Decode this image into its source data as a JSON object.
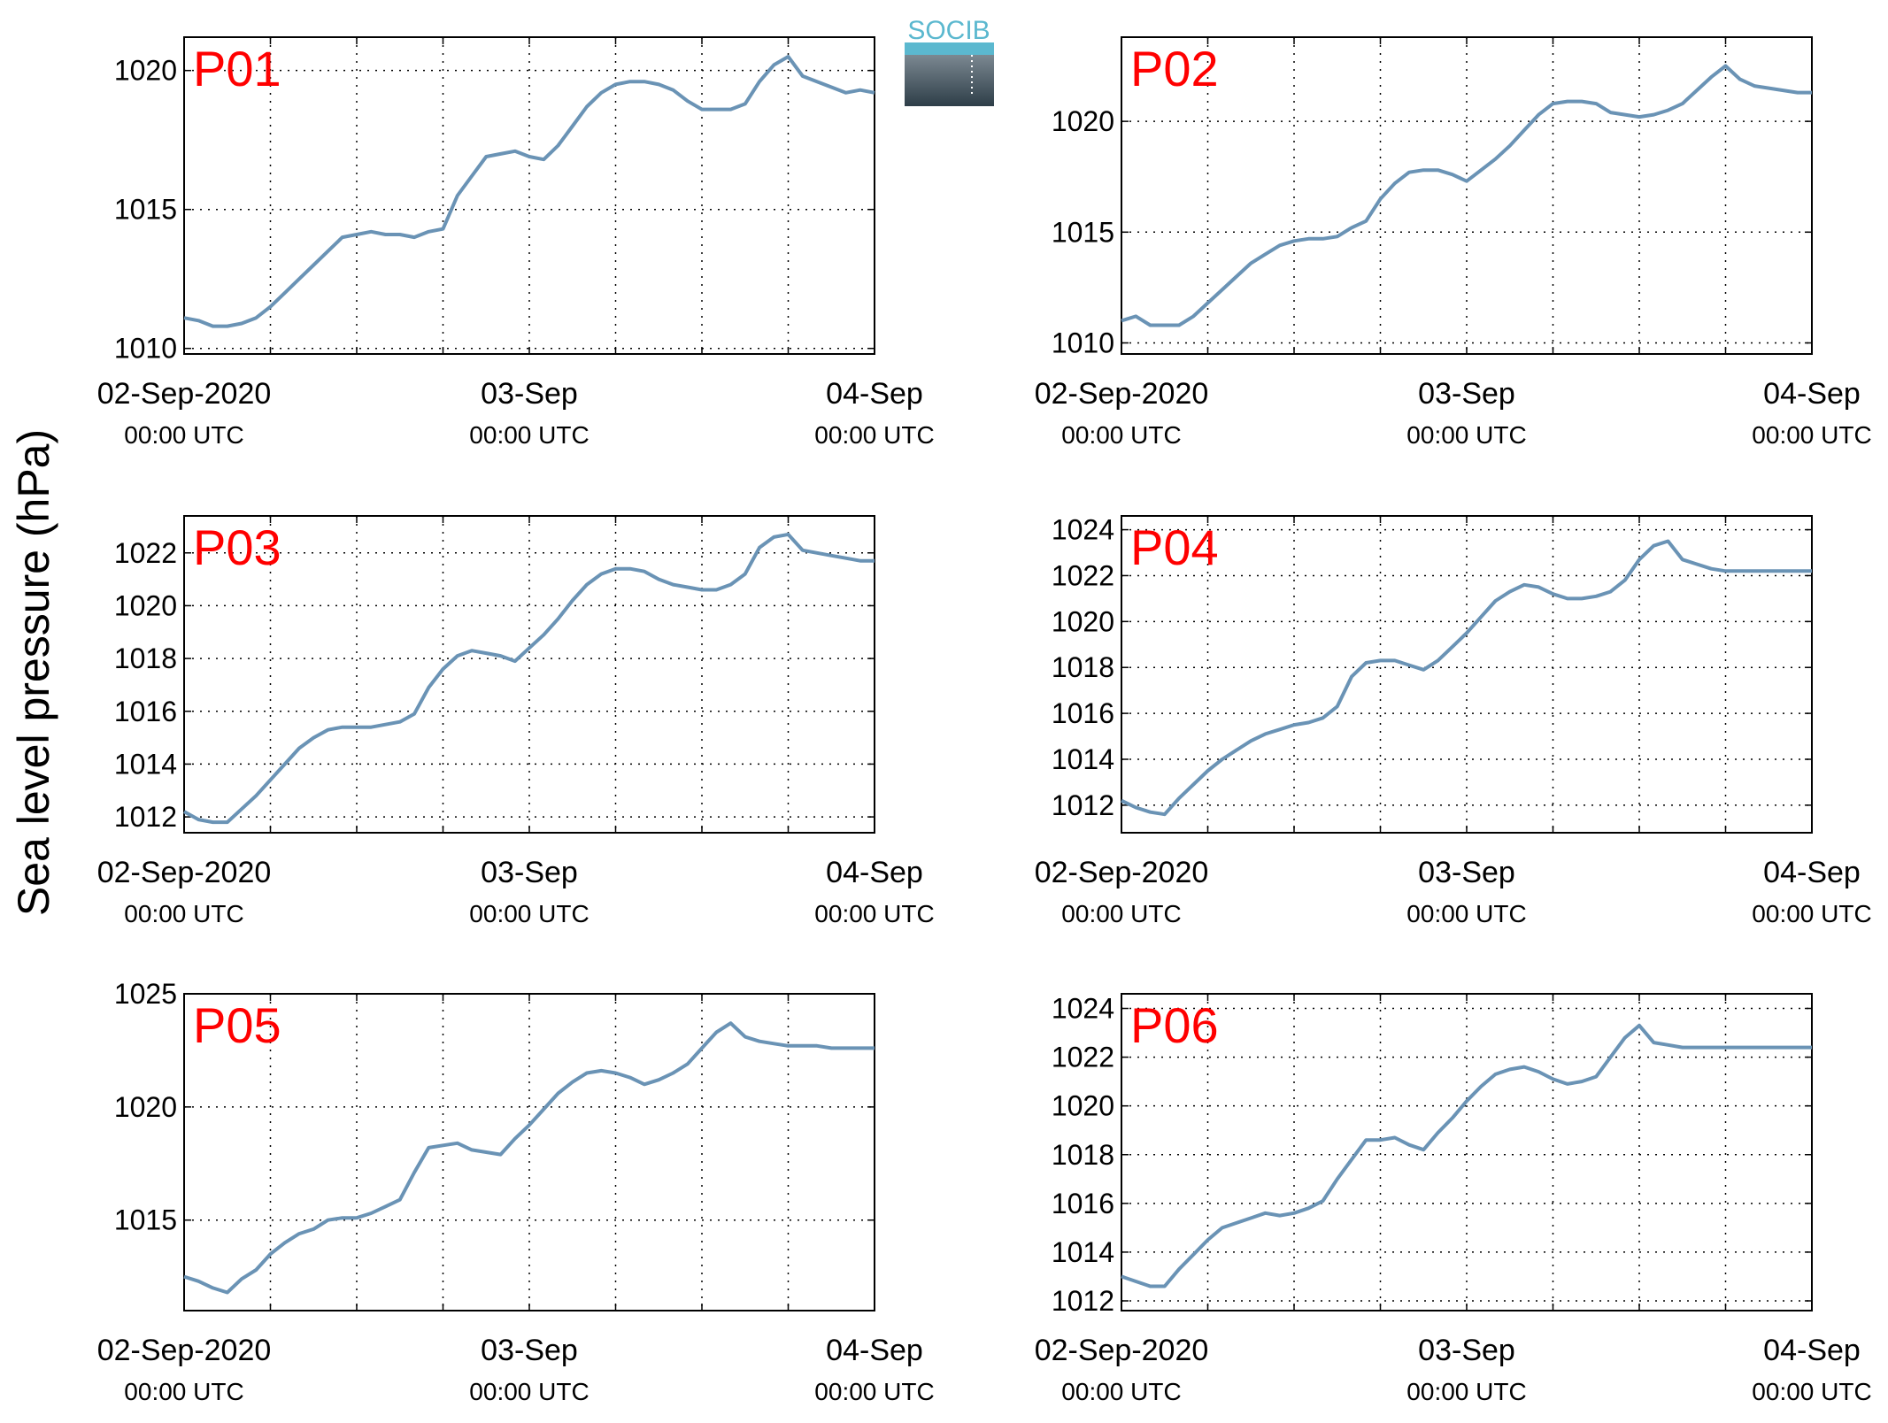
{
  "ylabel": "Sea level pressure (hPa)",
  "logo": {
    "text": "SOCIB",
    "color_top": "#5bb8cf",
    "color_bottom": "#2e3e48"
  },
  "x_ticks": [
    {
      "date": "02-Sep-2020",
      "time": "00:00 UTC"
    },
    {
      "date": "03-Sep",
      "time": "00:00 UTC"
    },
    {
      "date": "04-Sep",
      "time": "00:00 UTC"
    }
  ],
  "colors": {
    "series": "#6a93b5",
    "panel_label": "#ff0000",
    "grid": "#000000"
  },
  "chart_data": [
    {
      "type": "line",
      "panel": "P01",
      "xlim": [
        "2020-09-02 00:00",
        "2020-09-04 00:00"
      ],
      "ylim": [
        1009.8,
        1021.2
      ],
      "yticks": [
        1010,
        1015,
        1020
      ],
      "x_unit": "hours from 02-Sep-2020 00:00 UTC",
      "x": [
        0,
        1,
        2,
        3,
        4,
        5,
        6,
        7,
        8,
        9,
        10,
        11,
        12,
        13,
        14,
        15,
        16,
        17,
        18,
        19,
        20,
        21,
        22,
        23,
        24,
        25,
        26,
        27,
        28,
        29,
        30,
        31,
        32,
        33,
        34,
        35,
        36,
        37,
        38,
        39,
        40,
        41,
        42,
        43,
        44,
        45,
        46,
        47,
        48
      ],
      "values": [
        1011.1,
        1011.0,
        1010.8,
        1010.8,
        1010.9,
        1011.1,
        1011.5,
        1012.0,
        1012.5,
        1013.0,
        1013.5,
        1014.0,
        1014.1,
        1014.2,
        1014.1,
        1014.1,
        1014.0,
        1014.2,
        1014.3,
        1015.5,
        1016.2,
        1016.9,
        1017.0,
        1017.1,
        1016.9,
        1016.8,
        1017.3,
        1018.0,
        1018.7,
        1019.2,
        1019.5,
        1019.6,
        1019.6,
        1019.5,
        1019.3,
        1018.9,
        1018.6,
        1018.6,
        1018.6,
        1018.8,
        1019.6,
        1020.2,
        1020.5,
        1019.8,
        1019.6,
        1019.4,
        1019.2,
        1019.3,
        1019.2
      ]
    },
    {
      "type": "line",
      "panel": "P02",
      "xlim": [
        "2020-09-02 00:00",
        "2020-09-04 00:00"
      ],
      "ylim": [
        1009.5,
        1023.8
      ],
      "yticks": [
        1010,
        1015,
        1020
      ],
      "x_unit": "hours from 02-Sep-2020 00:00 UTC",
      "x": [
        0,
        1,
        2,
        3,
        4,
        5,
        6,
        7,
        8,
        9,
        10,
        11,
        12,
        13,
        14,
        15,
        16,
        17,
        18,
        19,
        20,
        21,
        22,
        23,
        24,
        25,
        26,
        27,
        28,
        29,
        30,
        31,
        32,
        33,
        34,
        35,
        36,
        37,
        38,
        39,
        40,
        41,
        42,
        43,
        44,
        45,
        46,
        47,
        48
      ],
      "values": [
        1011.0,
        1011.2,
        1010.8,
        1010.8,
        1010.8,
        1011.2,
        1011.8,
        1012.4,
        1013.0,
        1013.6,
        1014.0,
        1014.4,
        1014.6,
        1014.7,
        1014.7,
        1014.8,
        1015.2,
        1015.5,
        1016.5,
        1017.2,
        1017.7,
        1017.8,
        1017.8,
        1017.6,
        1017.3,
        1017.8,
        1018.3,
        1018.9,
        1019.6,
        1020.3,
        1020.8,
        1020.9,
        1020.9,
        1020.8,
        1020.4,
        1020.3,
        1020.2,
        1020.3,
        1020.5,
        1020.8,
        1021.4,
        1022.0,
        1022.5,
        1021.9,
        1021.6,
        1021.5,
        1021.4,
        1021.3,
        1021.3
      ]
    },
    {
      "type": "line",
      "panel": "P03",
      "xlim": [
        "2020-09-02 00:00",
        "2020-09-04 00:00"
      ],
      "ylim": [
        1011.4,
        1023.4
      ],
      "yticks": [
        1012,
        1014,
        1016,
        1018,
        1020,
        1022
      ],
      "x_unit": "hours from 02-Sep-2020 00:00 UTC",
      "x": [
        0,
        1,
        2,
        3,
        4,
        5,
        6,
        7,
        8,
        9,
        10,
        11,
        12,
        13,
        14,
        15,
        16,
        17,
        18,
        19,
        20,
        21,
        22,
        23,
        24,
        25,
        26,
        27,
        28,
        29,
        30,
        31,
        32,
        33,
        34,
        35,
        36,
        37,
        38,
        39,
        40,
        41,
        42,
        43,
        44,
        45,
        46,
        47,
        48
      ],
      "values": [
        1012.2,
        1011.9,
        1011.8,
        1011.8,
        1012.3,
        1012.8,
        1013.4,
        1014.0,
        1014.6,
        1015.0,
        1015.3,
        1015.4,
        1015.4,
        1015.4,
        1015.5,
        1015.6,
        1015.9,
        1016.9,
        1017.6,
        1018.1,
        1018.3,
        1018.2,
        1018.1,
        1017.9,
        1018.4,
        1018.9,
        1019.5,
        1020.2,
        1020.8,
        1021.2,
        1021.4,
        1021.4,
        1021.3,
        1021.0,
        1020.8,
        1020.7,
        1020.6,
        1020.6,
        1020.8,
        1021.2,
        1022.2,
        1022.6,
        1022.7,
        1022.1,
        1022.0,
        1021.9,
        1021.8,
        1021.7,
        1021.7
      ]
    },
    {
      "type": "line",
      "panel": "P04",
      "xlim": [
        "2020-09-02 00:00",
        "2020-09-04 00:00"
      ],
      "ylim": [
        1010.8,
        1024.6
      ],
      "yticks": [
        1012,
        1014,
        1016,
        1018,
        1020,
        1022,
        1024
      ],
      "x_unit": "hours from 02-Sep-2020 00:00 UTC",
      "x": [
        0,
        1,
        2,
        3,
        4,
        5,
        6,
        7,
        8,
        9,
        10,
        11,
        12,
        13,
        14,
        15,
        16,
        17,
        18,
        19,
        20,
        21,
        22,
        23,
        24,
        25,
        26,
        27,
        28,
        29,
        30,
        31,
        32,
        33,
        34,
        35,
        36,
        37,
        38,
        39,
        40,
        41,
        42,
        43,
        44,
        45,
        46,
        47,
        48
      ],
      "values": [
        1012.2,
        1011.9,
        1011.7,
        1011.6,
        1012.3,
        1012.9,
        1013.5,
        1014.0,
        1014.4,
        1014.8,
        1015.1,
        1015.3,
        1015.5,
        1015.6,
        1015.8,
        1016.3,
        1017.6,
        1018.2,
        1018.3,
        1018.3,
        1018.1,
        1017.9,
        1018.3,
        1018.9,
        1019.5,
        1020.2,
        1020.9,
        1021.3,
        1021.6,
        1021.5,
        1021.2,
        1021.0,
        1021.0,
        1021.1,
        1021.3,
        1021.8,
        1022.7,
        1023.3,
        1023.5,
        1022.7,
        1022.5,
        1022.3,
        1022.2,
        1022.2,
        1022.2,
        1022.2,
        1022.2,
        1022.2,
        1022.2
      ]
    },
    {
      "type": "line",
      "panel": "P05",
      "xlim": [
        "2020-09-02 00:00",
        "2020-09-04 00:00"
      ],
      "ylim": [
        1011,
        1025
      ],
      "yticks": [
        1015,
        1020,
        1025
      ],
      "x_unit": "hours from 02-Sep-2020 00:00 UTC",
      "x": [
        0,
        1,
        2,
        3,
        4,
        5,
        6,
        7,
        8,
        9,
        10,
        11,
        12,
        13,
        14,
        15,
        16,
        17,
        18,
        19,
        20,
        21,
        22,
        23,
        24,
        25,
        26,
        27,
        28,
        29,
        30,
        31,
        32,
        33,
        34,
        35,
        36,
        37,
        38,
        39,
        40,
        41,
        42,
        43,
        44,
        45,
        46,
        47,
        48
      ],
      "values": [
        1012.5,
        1012.3,
        1012.0,
        1011.8,
        1012.4,
        1012.8,
        1013.5,
        1014.0,
        1014.4,
        1014.6,
        1015.0,
        1015.1,
        1015.1,
        1015.3,
        1015.6,
        1015.9,
        1017.1,
        1018.2,
        1018.3,
        1018.4,
        1018.1,
        1018.0,
        1017.9,
        1018.6,
        1019.2,
        1019.9,
        1020.6,
        1021.1,
        1021.5,
        1021.6,
        1021.5,
        1021.3,
        1021.0,
        1021.2,
        1021.5,
        1021.9,
        1022.6,
        1023.3,
        1023.7,
        1023.1,
        1022.9,
        1022.8,
        1022.7,
        1022.7,
        1022.7,
        1022.6,
        1022.6,
        1022.6,
        1022.6
      ]
    },
    {
      "type": "line",
      "panel": "P06",
      "xlim": [
        "2020-09-02 00:00",
        "2020-09-04 00:00"
      ],
      "ylim": [
        1011.6,
        1024.6
      ],
      "yticks": [
        1012,
        1014,
        1016,
        1018,
        1020,
        1022,
        1024
      ],
      "x_unit": "hours from 02-Sep-2020 00:00 UTC",
      "x": [
        0,
        1,
        2,
        3,
        4,
        5,
        6,
        7,
        8,
        9,
        10,
        11,
        12,
        13,
        14,
        15,
        16,
        17,
        18,
        19,
        20,
        21,
        22,
        23,
        24,
        25,
        26,
        27,
        28,
        29,
        30,
        31,
        32,
        33,
        34,
        35,
        36,
        37,
        38,
        39,
        40,
        41,
        42,
        43,
        44,
        45,
        46,
        47,
        48
      ],
      "values": [
        1013.0,
        1012.8,
        1012.6,
        1012.6,
        1013.3,
        1013.9,
        1014.5,
        1015.0,
        1015.2,
        1015.4,
        1015.6,
        1015.5,
        1015.6,
        1015.8,
        1016.1,
        1017.0,
        1017.8,
        1018.6,
        1018.6,
        1018.7,
        1018.4,
        1018.2,
        1018.9,
        1019.5,
        1020.2,
        1020.8,
        1021.3,
        1021.5,
        1021.6,
        1021.4,
        1021.1,
        1020.9,
        1021.0,
        1021.2,
        1022.0,
        1022.8,
        1023.3,
        1022.6,
        1022.5,
        1022.4,
        1022.4,
        1022.4,
        1022.4,
        1022.4,
        1022.4,
        1022.4,
        1022.4,
        1022.4,
        1022.4
      ]
    }
  ]
}
